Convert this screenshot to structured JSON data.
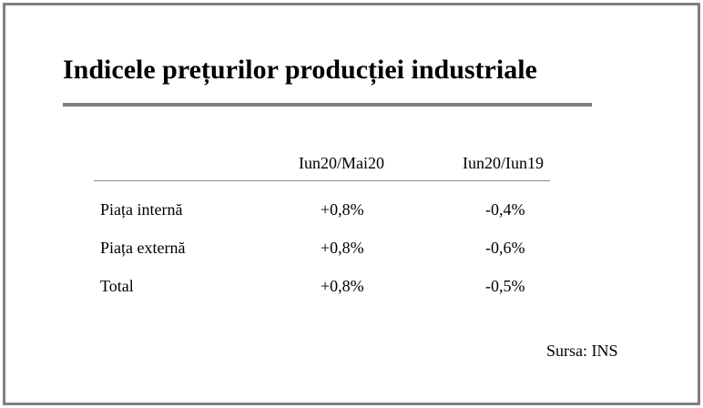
{
  "title": "Indicele prețurilor producției industriale",
  "table": {
    "columns": [
      "Iun20/Mai20",
      "Iun20/Iun19"
    ],
    "rows": [
      {
        "label": "Piața internă",
        "values": [
          "+0,8%",
          "-0,4%"
        ]
      },
      {
        "label": "Piața externă",
        "values": [
          "+0,8%",
          "-0,6%"
        ]
      },
      {
        "label": "Total",
        "values": [
          "+0,8%",
          "-0,5%"
        ]
      }
    ]
  },
  "source": "Sursa: INS"
}
